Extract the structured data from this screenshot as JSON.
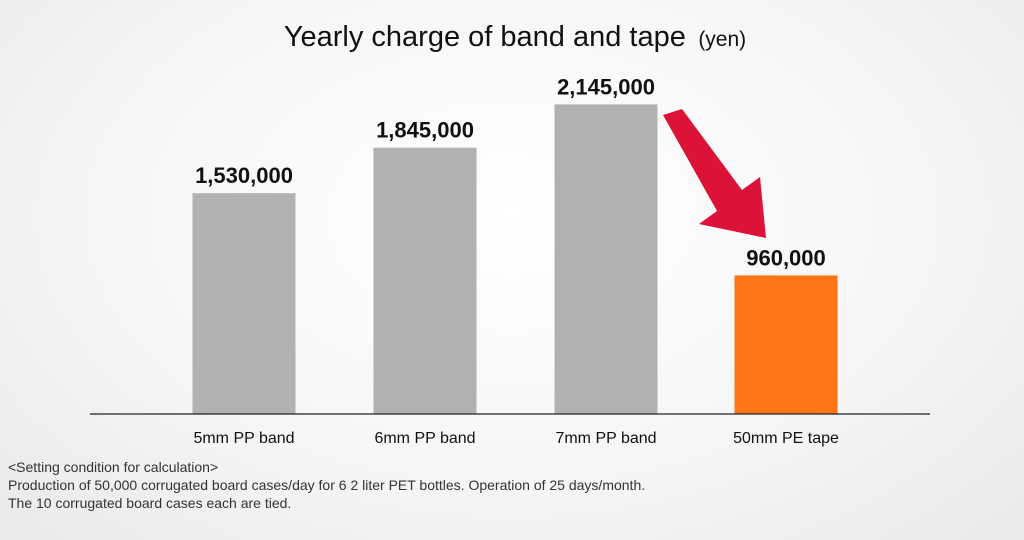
{
  "chart_data": {
    "type": "bar",
    "title": "Yearly charge of band and tape",
    "title_unit": "(yen)",
    "categories": [
      "5mm PP band",
      "6mm PP band",
      "7mm PP band",
      "50mm PE tape"
    ],
    "values": [
      1530000,
      1845000,
      2145000,
      960000
    ],
    "value_labels": [
      "1,530,000",
      "1,845,000",
      "2,145,000",
      "960,000"
    ],
    "bar_colors": [
      "#b1b1b1",
      "#b1b1b1",
      "#b1b1b1",
      "#ff7415"
    ],
    "arrow_color": "#dc1238",
    "ylim": [
      0,
      2300000
    ],
    "xlabel": "",
    "ylabel": "",
    "grid": false,
    "legend": "none"
  },
  "notes": {
    "heading": "<Setting condition for calculation>",
    "line1": "Production of 50,000 corrugated board cases/day for 6 2 liter PET bottles. Operation of 25 days/month.",
    "line2": "The 10 corrugated board cases each are tied."
  }
}
